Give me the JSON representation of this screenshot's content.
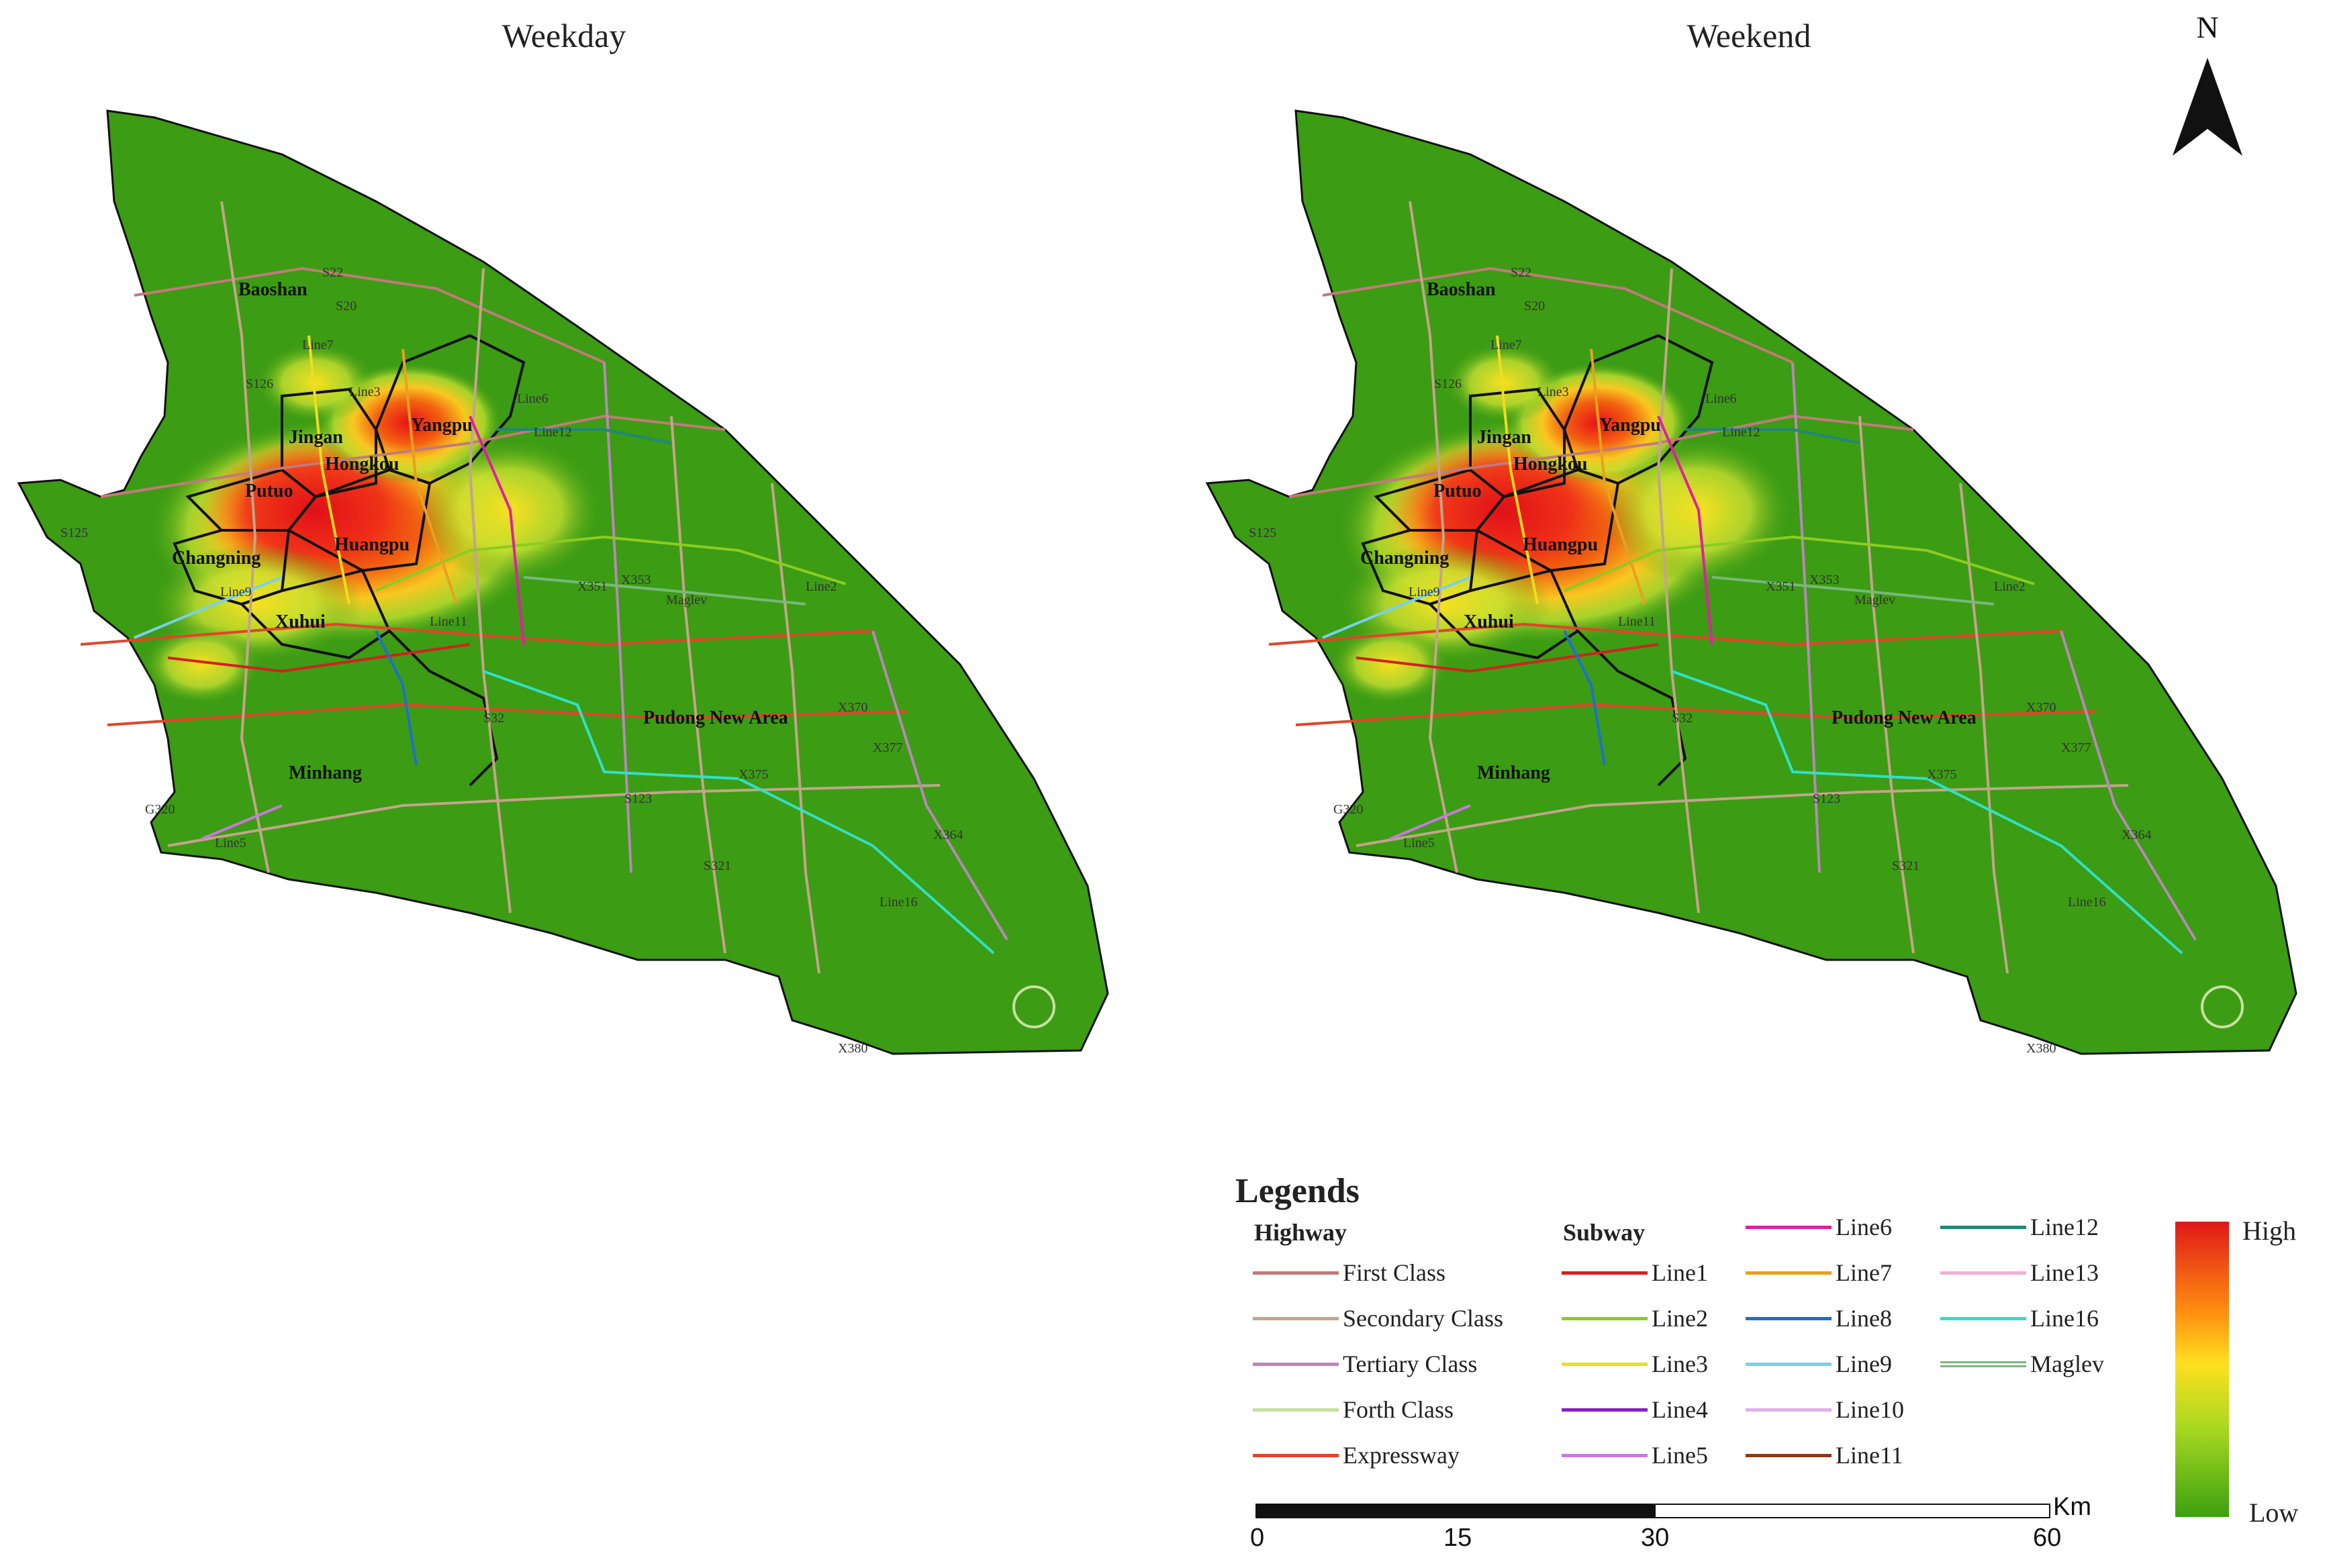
{
  "panels": [
    {
      "title": "Weekday"
    },
    {
      "title": "Weekend"
    }
  ],
  "north_label": "N",
  "districts": [
    "Baoshan",
    "Jingan",
    "Yangpu",
    "Hongkou",
    "Putuo",
    "Changning",
    "Huangpu",
    "Xuhui",
    "Minhang",
    "Pudong New Area"
  ],
  "road_labels": [
    "S20",
    "S22",
    "S123",
    "S125",
    "S126",
    "S321",
    "S32",
    "X351",
    "X353",
    "Line12",
    "Line6",
    "Line11",
    "Line16",
    "Line5",
    "Line2",
    "Maglev",
    "Line9",
    "Line3",
    "Line7",
    "G320",
    "X370",
    "X380",
    "X364",
    "X377",
    "X375"
  ],
  "legend": {
    "title": "Legends",
    "highway_header": "Highway",
    "subway_header": "Subway",
    "highway": [
      {
        "label": "First Class",
        "color": "#c27a7a"
      },
      {
        "label": "Secondary Class",
        "color": "#c3a58a"
      },
      {
        "label": "Tertiary Class",
        "color": "#b888b8"
      },
      {
        "label": "Forth Class",
        "color": "#c8e0a0"
      },
      {
        "label": "Expressway",
        "color": "#e0452a"
      }
    ],
    "subway_col1": [
      {
        "label": "Line1",
        "color": "#d42020"
      },
      {
        "label": "Line2",
        "color": "#8ccc20"
      },
      {
        "label": "Line3",
        "color": "#f0dc20"
      },
      {
        "label": "Line4",
        "color": "#8a20c8"
      },
      {
        "label": "Line5",
        "color": "#c878e0"
      }
    ],
    "subway_col2": [
      {
        "label": "Line6",
        "color": "#e020a0"
      },
      {
        "label": "Line7",
        "color": "#e8a020"
      },
      {
        "label": "Line8",
        "color": "#2070c8"
      },
      {
        "label": "Line9",
        "color": "#78d0ec"
      },
      {
        "label": "Line10",
        "color": "#e0b0ec"
      },
      {
        "label": "Line11",
        "color": "#8a3a18"
      }
    ],
    "subway_col3": [
      {
        "label": "Line12",
        "color": "#208878"
      },
      {
        "label": "Line13",
        "color": "#f0b0d8"
      },
      {
        "label": "Line16",
        "color": "#30e0c8"
      },
      {
        "label": "Maglev",
        "color": "#78b878"
      }
    ]
  },
  "scale_bar": {
    "unit": "Km",
    "ticks": [
      "0",
      "15",
      "30",
      "60"
    ]
  },
  "density_ramp": {
    "high": "High",
    "low": "Low",
    "colors": [
      "#e01818",
      "#ff8c10",
      "#ffe020",
      "#a8d820",
      "#3ca010"
    ]
  },
  "base_color": "#3c9c14"
}
